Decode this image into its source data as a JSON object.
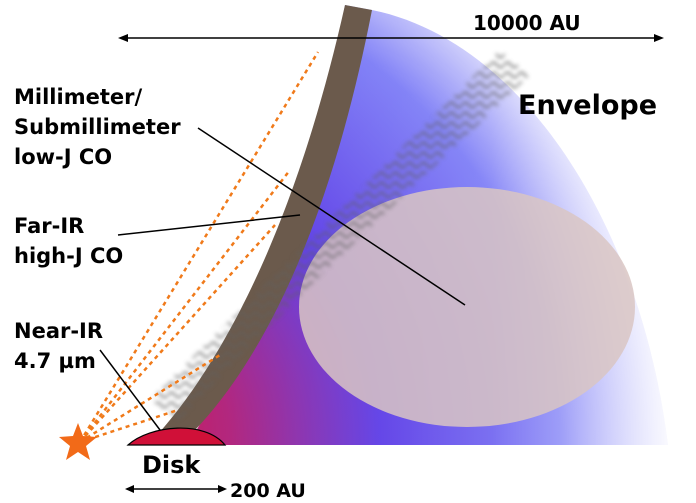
{
  "labels": {
    "scale_large": "10000 AU",
    "envelope": "Envelope",
    "mm_line1": "Millimeter/",
    "mm_line2": "Submillimeter",
    "mm_line3": "low-J CO",
    "fir_line1": "Far-IR",
    "fir_line2": "high-J CO",
    "nir_line1": "Near-IR",
    "nir_line2": "4.7 µm",
    "disk": "Disk",
    "scale_small": "200 AU"
  },
  "colors": {
    "envelope_blue": "#3b3bf0",
    "envelope_red": "#e0103a",
    "outflow_wall": "#6b5a4c",
    "sight_lines": "#f07a1a",
    "star": "#f26a18",
    "ellipse": "#d9c6c3",
    "arrows": "#000000"
  }
}
